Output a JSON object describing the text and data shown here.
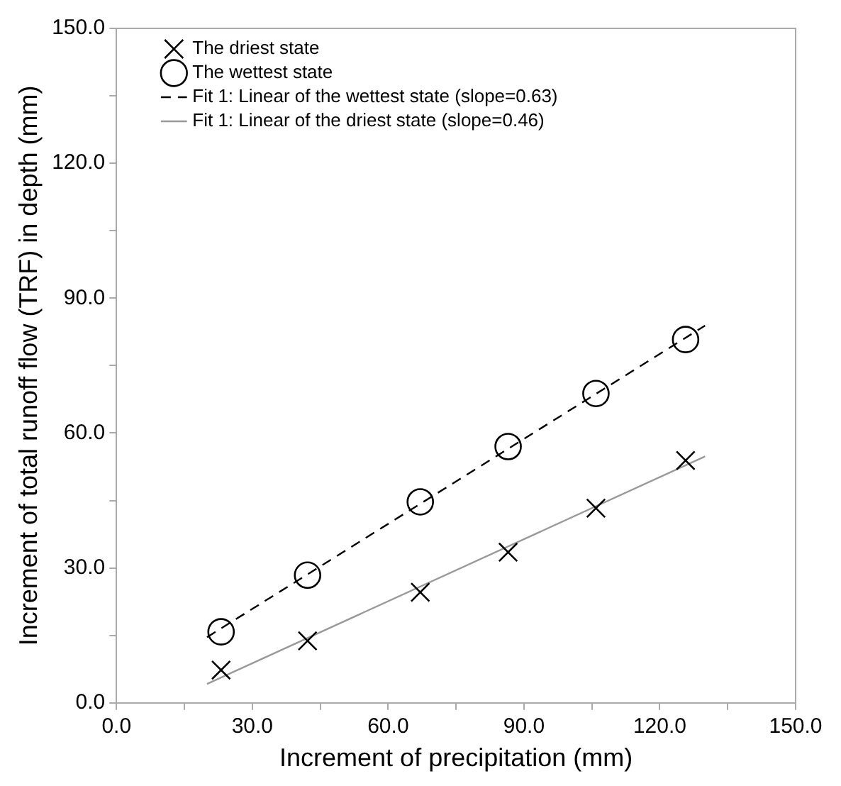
{
  "chart_data": {
    "type": "scatter",
    "xlabel": "Increment of precipitation (mm)",
    "ylabel": "Increment of total runoff flow (TRF) in depth (mm)",
    "xlim": [
      0,
      150
    ],
    "ylim": [
      0,
      150
    ],
    "xticks": [
      {
        "value": 0,
        "label": "0.0"
      },
      {
        "value": 15,
        "label": null
      },
      {
        "value": 30,
        "label": "30.0"
      },
      {
        "value": 45,
        "label": null
      },
      {
        "value": 60,
        "label": "60.0"
      },
      {
        "value": 75,
        "label": null
      },
      {
        "value": 90,
        "label": "90.0"
      },
      {
        "value": 105,
        "label": null
      },
      {
        "value": 120,
        "label": "120.0"
      },
      {
        "value": 135,
        "label": null
      },
      {
        "value": 150,
        "label": "150.0"
      }
    ],
    "yticks": [
      {
        "value": 0,
        "label": "0.0"
      },
      {
        "value": 15,
        "label": null
      },
      {
        "value": 30,
        "label": "30.0"
      },
      {
        "value": 45,
        "label": null
      },
      {
        "value": 60,
        "label": "60.0"
      },
      {
        "value": 75,
        "label": null
      },
      {
        "value": 90,
        "label": "90.0"
      },
      {
        "value": 105,
        "label": null
      },
      {
        "value": 120,
        "label": "120.0"
      },
      {
        "value": 135,
        "label": null
      },
      {
        "value": 150,
        "label": "150.0"
      }
    ],
    "grid": false,
    "legend": "top left",
    "series": [
      {
        "name": "The driest state",
        "type": "scatter",
        "marker": "cross",
        "color": "#000000",
        "x": [
          23.1,
          42.2,
          67.1,
          86.5,
          105.9,
          125.7
        ],
        "values": [
          7.3,
          13.8,
          24.6,
          33.5,
          43.3,
          53.9
        ]
      },
      {
        "name": "The wettest state",
        "type": "scatter",
        "marker": "circle",
        "color": "#000000",
        "x": [
          23.1,
          42.2,
          67.1,
          86.5,
          105.9,
          125.7
        ],
        "values": [
          15.8,
          28.4,
          44.7,
          57.0,
          68.8,
          80.8
        ]
      },
      {
        "name": "Fit 1: Linear of the wettest state (slope=0.63)",
        "type": "line",
        "marker": "none",
        "line_style": "dashed",
        "color": "#000000",
        "x": [
          20,
          130
        ],
        "values": [
          14.6,
          83.9
        ]
      },
      {
        "name": "Fit 1: Linear of the driest state (slope=0.46)",
        "type": "line",
        "marker": "none",
        "line_style": "solid",
        "color": "#999999",
        "x": [
          20,
          130
        ],
        "values": [
          4.2,
          54.8
        ]
      }
    ]
  }
}
